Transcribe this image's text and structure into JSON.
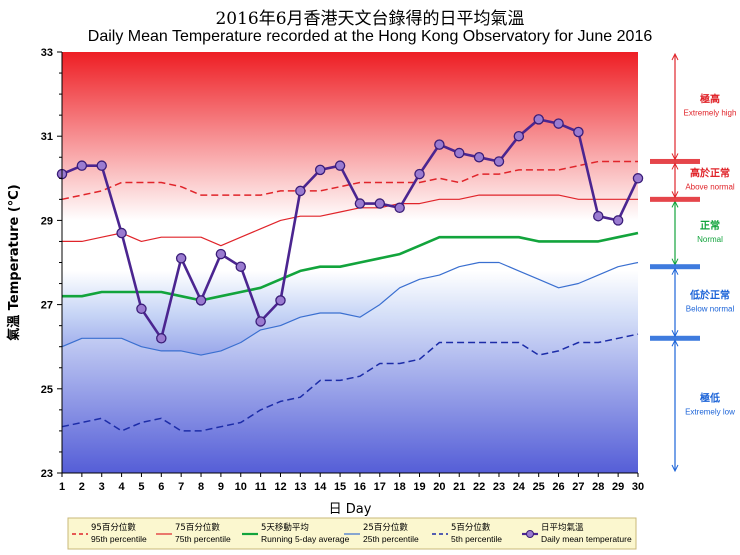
{
  "title_zh": "2016年6月香港天文台錄得的日平均氣溫",
  "title_en": "Daily Mean Temperature recorded at the Hong Kong Observatory for June 2016",
  "chart_data": {
    "type": "line",
    "title": "Daily Mean Temperature recorded at the Hong Kong Observatory for June 2016",
    "xlabel": "日 Day",
    "ylabel": "氣溫 Temperature (°C)",
    "xlim": [
      1,
      30
    ],
    "ylim": [
      23,
      33
    ],
    "x": [
      1,
      2,
      3,
      4,
      5,
      6,
      7,
      8,
      9,
      10,
      11,
      12,
      13,
      14,
      15,
      16,
      17,
      18,
      19,
      20,
      21,
      22,
      23,
      24,
      25,
      26,
      27,
      28,
      29,
      30
    ],
    "x_ticks": [
      1,
      2,
      3,
      4,
      5,
      6,
      7,
      8,
      9,
      10,
      11,
      12,
      13,
      14,
      15,
      16,
      17,
      18,
      19,
      20,
      21,
      22,
      23,
      24,
      25,
      26,
      27,
      28,
      29,
      30
    ],
    "y_ticks": [
      23,
      25,
      27,
      29,
      31,
      33
    ],
    "series": [
      {
        "name_zh": "95百分位數",
        "name": "95th percentile",
        "color": "#e0242a",
        "style": "dashed",
        "values": [
          29.5,
          29.6,
          29.7,
          29.9,
          29.9,
          29.9,
          29.8,
          29.6,
          29.6,
          29.6,
          29.6,
          29.7,
          29.7,
          29.7,
          29.8,
          29.9,
          29.9,
          29.9,
          29.9,
          30.0,
          29.9,
          30.1,
          30.1,
          30.2,
          30.2,
          30.2,
          30.3,
          30.4,
          30.4,
          30.4
        ]
      },
      {
        "name_zh": "75百分位數",
        "name": "75th percentile",
        "color": "#e0242a",
        "style": "solid",
        "values": [
          28.5,
          28.5,
          28.6,
          28.7,
          28.5,
          28.6,
          28.6,
          28.6,
          28.4,
          28.6,
          28.8,
          29.0,
          29.1,
          29.1,
          29.2,
          29.3,
          29.3,
          29.4,
          29.4,
          29.5,
          29.5,
          29.6,
          29.6,
          29.6,
          29.6,
          29.6,
          29.5,
          29.5,
          29.5,
          29.5
        ]
      },
      {
        "name_zh": "5天移動平均",
        "name": "Running 5-day average",
        "color": "#12a43c",
        "style": "solid",
        "values": [
          27.2,
          27.2,
          27.3,
          27.3,
          27.3,
          27.3,
          27.2,
          27.1,
          27.2,
          27.3,
          27.4,
          27.6,
          27.8,
          27.9,
          27.9,
          28.0,
          28.1,
          28.2,
          28.4,
          28.6,
          28.6,
          28.6,
          28.6,
          28.6,
          28.5,
          28.5,
          28.5,
          28.5,
          28.6,
          28.7
        ]
      },
      {
        "name_zh": "25百分位數",
        "name": "25th percentile",
        "color": "#3a6fd0",
        "style": "solid",
        "values": [
          26.0,
          26.2,
          26.2,
          26.2,
          26.0,
          25.9,
          25.9,
          25.8,
          25.9,
          26.1,
          26.4,
          26.5,
          26.7,
          26.8,
          26.8,
          26.7,
          27.0,
          27.4,
          27.6,
          27.7,
          27.9,
          28.0,
          28.0,
          27.8,
          27.6,
          27.4,
          27.5,
          27.7,
          27.9,
          28.0
        ]
      },
      {
        "name_zh": "5百分位數",
        "name": "5th percentile",
        "color": "#1c2ca8",
        "style": "dashed",
        "values": [
          24.1,
          24.2,
          24.3,
          24.0,
          24.2,
          24.3,
          24.0,
          24.0,
          24.1,
          24.2,
          24.5,
          24.7,
          24.8,
          25.2,
          25.2,
          25.3,
          25.6,
          25.6,
          25.7,
          26.1,
          26.1,
          26.1,
          26.1,
          26.1,
          25.8,
          25.9,
          26.1,
          26.1,
          26.2,
          26.3
        ]
      },
      {
        "name_zh": "日平均氣溫",
        "name": "Daily mean temperature",
        "color": "#4b2590",
        "style": "solid-markers",
        "values": [
          30.1,
          30.3,
          30.3,
          28.7,
          26.9,
          26.2,
          28.1,
          27.1,
          28.2,
          27.9,
          26.6,
          27.1,
          29.7,
          30.2,
          30.3,
          29.4,
          29.4,
          29.3,
          30.1,
          30.8,
          30.6,
          30.5,
          30.4,
          31.0,
          31.4,
          31.3,
          31.1,
          29.1,
          29.0,
          30.0
        ]
      }
    ],
    "categories_right": [
      {
        "zh": "極高",
        "en": "Extremely high",
        "color": "#e0242a",
        "range": [
          30.4,
          33
        ]
      },
      {
        "zh": "高於正常",
        "en": "Above normal",
        "color": "#e0242a",
        "range": [
          29.5,
          30.4
        ]
      },
      {
        "zh": "正常",
        "en": "Normal",
        "color": "#12a43c",
        "range": [
          27.9,
          29.5
        ]
      },
      {
        "zh": "低於正常",
        "en": "Below normal",
        "color": "#1c64d8",
        "range": [
          26.2,
          27.9
        ]
      },
      {
        "zh": "極低",
        "en": "Extremely low",
        "color": "#1c64d8",
        "range": [
          23,
          26.2
        ]
      }
    ],
    "legend_position": "bottom"
  }
}
